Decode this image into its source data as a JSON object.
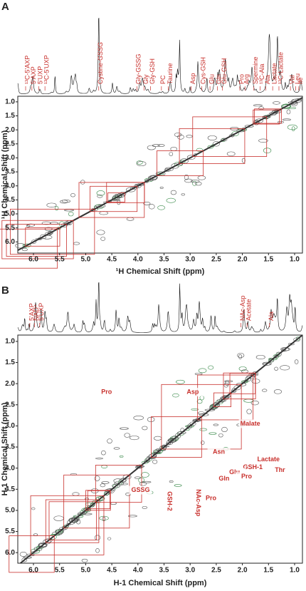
{
  "chart_data": [
    {
      "type": "nmr-2d",
      "panel_label": "A",
      "x_label": "¹H Chemical Shift (ppm)",
      "y_label": "¹H Chemical Shift (ppm)",
      "xlim": [
        6.3,
        0.85
      ],
      "ylim": [
        0.8,
        6.4
      ],
      "xticks": [
        {
          "value": 6,
          "label": "6.0"
        },
        5.5,
        {
          "value": 5,
          "label": "5.0"
        },
        4.5,
        {
          "value": 4,
          "label": "4.0"
        },
        3.5,
        {
          "value": 3,
          "label": "3.0"
        },
        2.5,
        {
          "value": 2,
          "label": "2.0"
        },
        1.5,
        {
          "value": 1,
          "label": "1.0"
        }
      ],
      "yticks": [
        {
          "value": 1,
          "label": "1.0"
        },
        1.5,
        {
          "value": 2,
          "label": "2.0"
        },
        2.5,
        {
          "value": 3,
          "label": "3.0"
        },
        3.5,
        {
          "value": 4,
          "label": "4.0"
        },
        4.5,
        {
          "value": 5,
          "label": "5.0"
        },
        5.5,
        {
          "value": 6,
          "label": "6.0"
        }
      ],
      "peak_labels": [
        {
          "text": "¹³C-5'AXP",
          "x": 6.15
        },
        {
          "text": "5'AXP",
          "x": 6.03
        },
        {
          "text": "5'UXP",
          "x": 5.9
        },
        {
          "text": "¹³C-5'UXP",
          "x": 5.78
        },
        {
          "text": "Cystine-GSSG",
          "x": 4.75
        },
        {
          "text": "Gly-GSSG",
          "x": 4.02
        },
        {
          "text": "Gly",
          "x": 3.88
        },
        {
          "text": "Gly-GSH",
          "x": 3.76
        },
        {
          "text": "PC",
          "x": 3.55
        },
        {
          "text": "Taurine",
          "x": 3.42
        },
        {
          "text": "Asp",
          "x": 2.98
        },
        {
          "text": "Cys-GSH",
          "x": 2.78
        },
        {
          "text": "Glu",
          "x": 2.62
        },
        {
          "text": "Gln",
          "x": 2.48
        },
        {
          "text": "Glu-GSH",
          "x": 2.38
        },
        {
          "text": "Pro",
          "x": 2.05
        },
        {
          "text": "Arg",
          "x": 1.95
        },
        {
          "text": "Spermine",
          "x": 1.78
        },
        {
          "text": "¹³C-Ala",
          "x": 1.66
        },
        {
          "text": "Ala",
          "x": 1.55
        },
        {
          "text": "Lactate",
          "x": 1.42
        },
        {
          "text": "¹³C-Lactate",
          "x": 1.3
        },
        {
          "text": "Val",
          "x": 1.08
        },
        {
          "text": "Leu",
          "x": 0.98
        },
        {
          "text": "Ile",
          "x": 0.92
        }
      ]
    },
    {
      "type": "nmr-2d",
      "panel_label": "B",
      "x_label": "H-1 Chemical Shift (ppm)",
      "y_label": "H-1 Chemical Shift (ppm)",
      "xlim": [
        6.3,
        0.85
      ],
      "ylim": [
        0.85,
        6.25
      ],
      "xticks": [
        {
          "value": 6,
          "label": "6.0"
        },
        5.5,
        {
          "value": 5,
          "label": "5.0"
        },
        4.5,
        {
          "value": 4,
          "label": "4.0"
        },
        3.5,
        {
          "value": 3,
          "label": "3.0"
        },
        2.5,
        {
          "value": 2,
          "label": "2.0"
        },
        1.5,
        {
          "value": 1,
          "label": "1.0"
        }
      ],
      "yticks": [
        {
          "value": 1,
          "label": "1.0"
        },
        1.5,
        {
          "value": 2,
          "label": "2.0"
        },
        2.5,
        {
          "value": 3,
          "label": "3.0"
        },
        3.5,
        {
          "value": 4,
          "label": "4.0"
        },
        4.5,
        {
          "value": 5,
          "label": "5.0"
        },
        5.5,
        {
          "value": 6,
          "label": "6.0"
        }
      ],
      "peak_labels": [
        {
          "text": "5'AXP",
          "x": 6.07
        },
        {
          "text": "NAD⁺",
          "x": 5.98
        },
        {
          "text": "5'UXP",
          "x": 5.88
        },
        {
          "text": "NAc-Asp",
          "x": 2.03
        },
        {
          "text": "Acetate",
          "x": 1.91
        },
        {
          "text": "Ala",
          "x": 1.48
        }
      ],
      "cross_peak_labels": [
        {
          "text": "Pro",
          "x": 4.6,
          "y": 2.2
        },
        {
          "text": "Asp",
          "x": 2.95,
          "y": 2.2
        },
        {
          "text": "Malate",
          "x": 1.85,
          "y": 2.95
        },
        {
          "text": "Lactate",
          "x": 1.5,
          "y": 3.8
        },
        {
          "text": "GSH-1",
          "x": 1.8,
          "y": 3.98
        },
        {
          "text": "Asn",
          "x": 2.45,
          "y": 3.62
        },
        {
          "text": "Thr",
          "x": 1.28,
          "y": 4.05
        },
        {
          "text": "Glu",
          "x": 2.15,
          "y": 4.1
        },
        {
          "text": "Pro",
          "x": 1.92,
          "y": 4.2
        },
        {
          "text": "Gln",
          "x": 2.35,
          "y": 4.25
        },
        {
          "text": "Pro",
          "x": 2.6,
          "y": 4.72
        },
        {
          "text": "GSSG",
          "x": 3.95,
          "y": 4.52
        },
        {
          "text": "GSH-2",
          "x": 3.4,
          "y": 4.55,
          "vertical": true
        },
        {
          "text": "NAc-Asp",
          "x": 2.85,
          "y": 4.5,
          "vertical": true
        }
      ]
    }
  ]
}
